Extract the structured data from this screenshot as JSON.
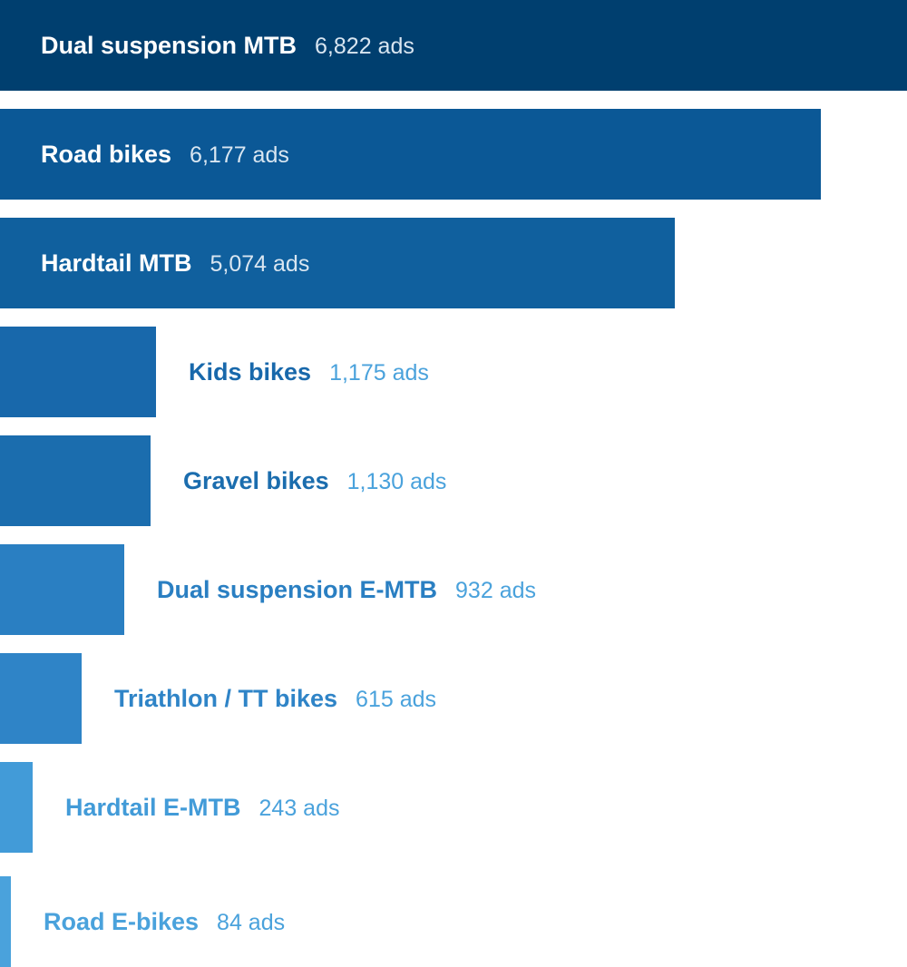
{
  "chart_data": {
    "type": "bar",
    "orientation": "horizontal",
    "categories": [
      "Dual suspension MTB",
      "Road bikes",
      "Hardtail MTB",
      "Kids bikes",
      "Gravel bikes",
      "Dual suspension E-MTB",
      "Triathlon / TT bikes",
      "Hardtail E-MTB",
      "Road E-bikes"
    ],
    "values": [
      6822,
      6177,
      5074,
      1175,
      1130,
      932,
      615,
      243,
      84
    ],
    "value_labels": [
      "6,822 ads",
      "6,177 ads",
      "5,074 ads",
      "1,175 ads",
      "1,130 ads",
      "932 ads",
      "615 ads",
      "243 ads",
      "84 ads"
    ],
    "bar_colors": [
      "#003f6f",
      "#0b5896",
      "#10609e",
      "#1868ab",
      "#1b6dae",
      "#2a7fc2",
      "#2f84c7",
      "#429bd8",
      "#4aa2dc"
    ],
    "label_colors": {
      "inside_category": "#ffffff",
      "inside_value": "#d9e6f1"
    },
    "title": "",
    "xlabel": "",
    "ylabel": "",
    "xlim": [
      0,
      6822
    ],
    "grid": false,
    "legend": "none"
  }
}
